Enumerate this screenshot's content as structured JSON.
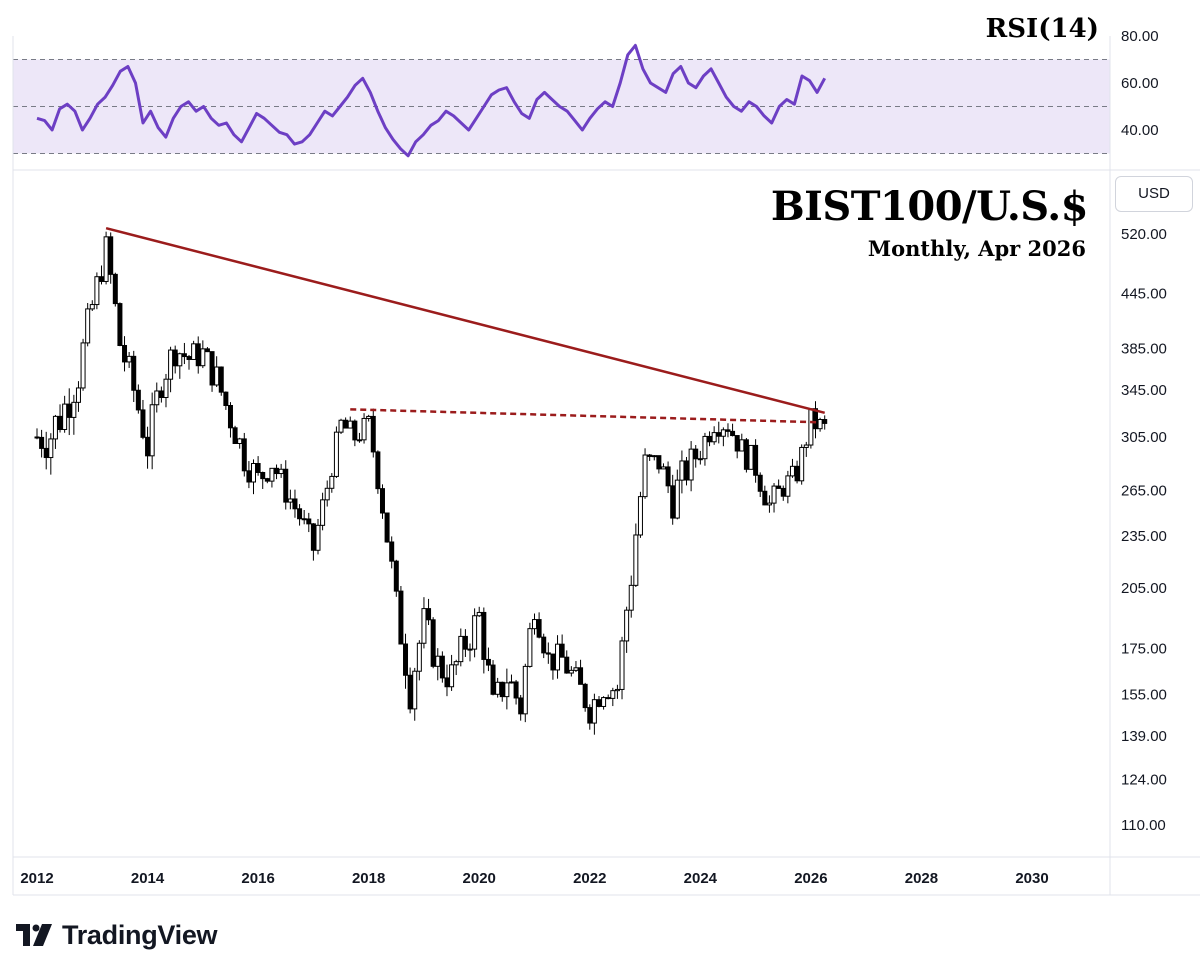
{
  "header": {
    "title": "BIST100/U.S.$",
    "subtitle": "Monthly, Apr 2026",
    "rsi_label": "RSI(14)",
    "currency": "USD"
  },
  "branding": {
    "logo_text": "TradingView"
  },
  "colors": {
    "rsi_line": "#6d3fc4",
    "rsi_band": "#ede7f8",
    "trendline": "#9b1c1c",
    "candle": "#000000"
  },
  "chart_data": [
    {
      "type": "candlestick",
      "title": "BIST100/U.S.$",
      "subtitle": "Monthly, Apr 2026",
      "y_scale": "log",
      "y_tick_labels": [
        "520.00",
        "445.00",
        "385.00",
        "345.00",
        "305.00",
        "265.00",
        "235.00",
        "205.00",
        "175.00",
        "155.00",
        "139.00",
        "124.00",
        "110.00"
      ],
      "x_tick_labels": [
        "2012",
        "2014",
        "2016",
        "2018",
        "2020",
        "2022",
        "2024",
        "2026",
        "2028",
        "2030"
      ],
      "grid": false,
      "series": [
        {
          "name": "BIST100/U.S.$",
          "points": [
            [
              "2012-01",
              280,
              330
            ],
            [
              "2012-04",
              275,
              340
            ],
            [
              "2012-07",
              300,
              360
            ],
            [
              "2012-10",
              330,
              390
            ],
            [
              "2013-01",
              400,
              460
            ],
            [
              "2013-04",
              470,
              530
            ],
            [
              "2013-07",
              360,
              420
            ],
            [
              "2013-10",
              320,
              370
            ],
            [
              "2014-01",
              275,
              320
            ],
            [
              "2014-04",
              330,
              380
            ],
            [
              "2014-07",
              360,
              410
            ],
            [
              "2014-10",
              350,
              400
            ],
            [
              "2015-01",
              360,
              400
            ],
            [
              "2015-04",
              330,
              380
            ],
            [
              "2015-07",
              300,
              340
            ],
            [
              "2015-10",
              270,
              310
            ],
            [
              "2016-01",
              255,
              290
            ],
            [
              "2016-04",
              270,
              300
            ],
            [
              "2016-07",
              250,
              280
            ],
            [
              "2016-10",
              235,
              260
            ],
            [
              "2017-01",
              215,
              240
            ],
            [
              "2017-04",
              255,
              280
            ],
            [
              "2017-07",
              300,
              330
            ],
            [
              "2017-10",
              290,
              320
            ],
            [
              "2018-01",
              300,
              330
            ],
            [
              "2018-04",
              240,
              270
            ],
            [
              "2018-07",
              180,
              210
            ],
            [
              "2018-10",
              145,
              170
            ],
            [
              "2019-01",
              175,
              200
            ],
            [
              "2019-04",
              155,
              180
            ],
            [
              "2019-07",
              150,
              175
            ],
            [
              "2019-10",
              165,
              190
            ],
            [
              "2020-01",
              175,
              205
            ],
            [
              "2020-04",
              140,
              160
            ],
            [
              "2020-07",
              150,
              175
            ],
            [
              "2020-10",
              140,
              160
            ],
            [
              "2021-01",
              185,
              210
            ],
            [
              "2021-04",
              160,
              180
            ],
            [
              "2021-07",
              160,
              180
            ],
            [
              "2021-10",
              150,
              170
            ],
            [
              "2022-01",
              140,
              160
            ],
            [
              "2022-04",
              150,
              165
            ],
            [
              "2022-07",
              150,
              165
            ],
            [
              "2022-10",
              195,
              230
            ],
            [
              "2023-01",
              270,
              300
            ],
            [
              "2023-04",
              270,
              300
            ],
            [
              "2023-07",
              240,
              280
            ],
            [
              "2023-10",
              260,
              300
            ],
            [
              "2024-01",
              280,
              310
            ],
            [
              "2024-04",
              300,
              340
            ],
            [
              "2024-07",
              300,
              330
            ],
            [
              "2024-10",
              280,
              310
            ],
            [
              "2025-01",
              265,
              300
            ],
            [
              "2025-04",
              240,
              270
            ],
            [
              "2025-07",
              255,
              280
            ],
            [
              "2025-10",
              265,
              290
            ],
            [
              "2026-01",
              300,
              335
            ],
            [
              "2026-04",
              300,
              325
            ]
          ]
        }
      ],
      "annotations": [
        {
          "type": "trendline",
          "style": "solid",
          "from": [
            "2013-04",
            528
          ],
          "to": [
            "2026-04",
            325
          ]
        },
        {
          "type": "trendline",
          "style": "dashed",
          "from": [
            "2017-09",
            328
          ],
          "to": [
            "2026-03",
            317
          ]
        }
      ]
    },
    {
      "type": "line",
      "title": "RSI(14)",
      "y_tick_labels": [
        "80.00",
        "60.00",
        "40.00"
      ],
      "band": [
        30,
        70
      ],
      "midline": 50,
      "series": [
        {
          "name": "RSI(14)",
          "values": [
            45,
            44,
            40,
            49,
            51,
            48,
            40,
            45,
            51,
            54,
            59,
            65,
            67,
            60,
            43,
            48,
            41,
            37,
            45,
            50,
            52,
            48,
            50,
            45,
            42,
            43,
            38,
            35,
            41,
            47,
            45,
            42,
            39,
            38,
            34,
            35,
            38,
            43,
            48,
            46,
            50,
            54,
            59,
            62,
            56,
            48,
            41,
            36,
            32,
            29,
            35,
            38,
            42,
            44,
            48,
            46,
            43,
            40,
            45,
            50,
            55,
            57,
            58,
            52,
            47,
            45,
            53,
            56,
            53,
            50,
            48,
            44,
            40,
            45,
            49,
            52,
            50,
            60,
            72,
            76,
            66,
            60,
            58,
            56,
            64,
            67,
            60,
            58,
            63,
            66,
            60,
            54,
            50,
            48,
            52,
            50,
            46,
            43,
            50,
            53,
            51,
            63,
            61,
            56,
            62
          ]
        }
      ]
    }
  ]
}
